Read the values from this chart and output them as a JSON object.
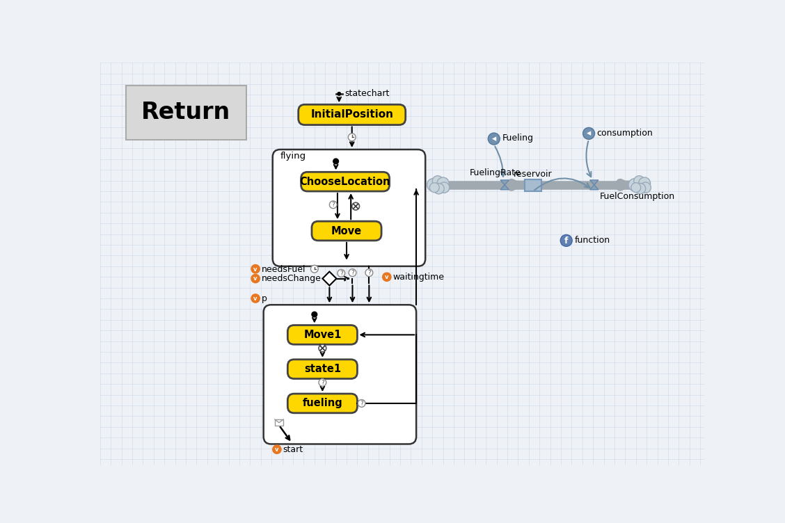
{
  "bg_color": "#eef2f7",
  "grid_color": "#ccd8e8",
  "title": "Return",
  "statechart_label": "statechart",
  "initial_position_label": "InitialPosition",
  "flying_label": "flying",
  "choose_location_label": "ChooseLocation",
  "move_label": "Move",
  "move1_label": "Move1",
  "state1_label": "state1",
  "fueling_label": "fueling",
  "needs_fuel_label": "needsFuel",
  "needs_change_label": "needsChange",
  "p_label": "p",
  "waiting_time_label": "waitingtime",
  "start_label": "start",
  "fueling_rate_label": "FuelingRate",
  "reservoir_label": "reservoir",
  "fuel_consumption_label": "FuelConsumption",
  "fueling_node_label": "Fueling",
  "consumption_node_label": "consumption",
  "function_label": "function",
  "yellow": "#FFD700",
  "box_stroke": "#444444",
  "orange_badge": "#E87722",
  "flow_line_color": "#A0A8B0",
  "flow_arrow_color": "#7090A8",
  "valve_color": "#8AA0B8",
  "reservoir_color": "#A8BCD0",
  "cloud_color": "#C8D4DC",
  "cloud_edge": "#9AAABB",
  "node_circle_color": "#7090B0",
  "function_circle_color": "#6080B0"
}
